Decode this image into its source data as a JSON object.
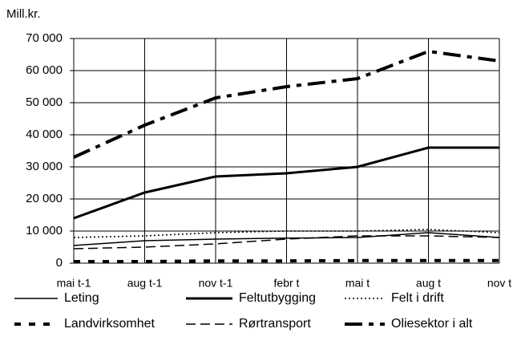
{
  "chart_data": {
    "type": "line",
    "y_axis_label": "Mill.kr.",
    "categories": [
      "mai t-1",
      "aug t-1",
      "nov t-1",
      "febr t",
      "mai t",
      "aug t",
      "nov t"
    ],
    "ylim": [
      0,
      70000
    ],
    "yticks": [
      0,
      {
        "value": 10000,
        "label": "10 000"
      },
      {
        "value": 20000,
        "label": "20 000"
      },
      {
        "value": 30000,
        "label": "30 000"
      },
      {
        "value": 40000,
        "label": "40 000"
      },
      {
        "value": 50000,
        "label": "50 000"
      },
      {
        "value": 60000,
        "label": "60 000"
      },
      {
        "value": 70000,
        "label": "70 000"
      }
    ],
    "grid": true,
    "legend": "bottom",
    "series": [
      {
        "name": "Leting",
        "color": "#000000",
        "style": "thin-solid",
        "values": [
          5500,
          7000,
          7500,
          7800,
          8000,
          9500,
          8000
        ]
      },
      {
        "name": "Feltutbygging",
        "color": "#000000",
        "style": "thick-solid",
        "values": [
          14000,
          22000,
          27000,
          28000,
          30000,
          36000,
          36000
        ]
      },
      {
        "name": "Felt i drift",
        "color": "#000000",
        "style": "dotted",
        "values": [
          8000,
          8500,
          9500,
          10000,
          10000,
          10500,
          9500
        ]
      },
      {
        "name": "Landvirksomhet",
        "color": "#000000",
        "style": "thick-short-dash",
        "values": [
          500,
          500,
          700,
          700,
          800,
          800,
          800
        ]
      },
      {
        "name": "Rørtransport",
        "color": "#000000",
        "style": "dashed",
        "values": [
          4500,
          5000,
          6000,
          7500,
          8500,
          8500,
          8000
        ]
      },
      {
        "name": "Oliesektor i alt",
        "color": "#000000",
        "style": "thick-long-dash",
        "values": [
          33000,
          43000,
          51500,
          55000,
          57500,
          66000,
          63000
        ]
      }
    ]
  }
}
